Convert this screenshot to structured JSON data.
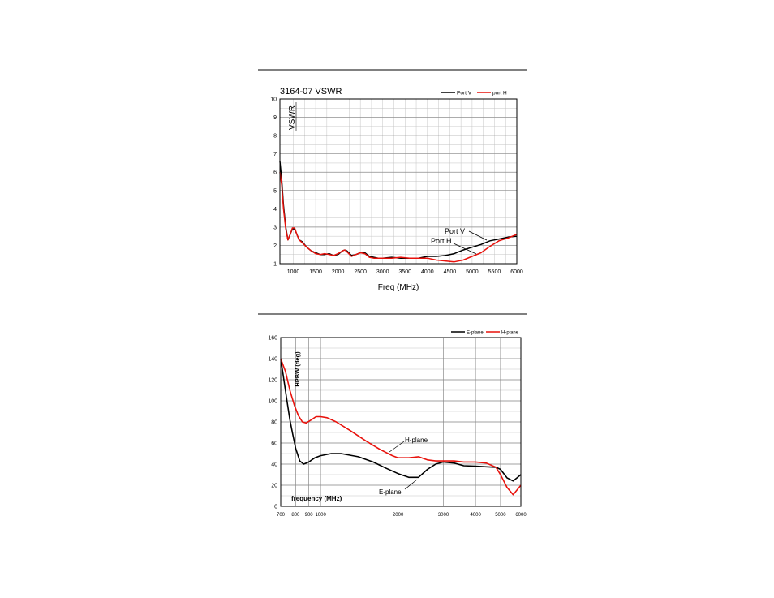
{
  "chart_data": [
    {
      "type": "line",
      "title": "3164-07 VSWR",
      "xlabel": "Freq (MHz)",
      "ylabel": "VSWR",
      "xlim": [
        700,
        6000
      ],
      "ylim": [
        1,
        10
      ],
      "xticks": [
        1000,
        1500,
        2000,
        2500,
        3000,
        3500,
        4000,
        4500,
        5000,
        5500,
        6000
      ],
      "yticks": [
        1,
        2,
        3,
        4,
        5,
        6,
        7,
        8,
        9,
        10
      ],
      "grid": true,
      "legend_position": "top-right",
      "series": [
        {
          "name": "Port V",
          "color": "#000000",
          "x": [
            700,
            740,
            780,
            830,
            880,
            930,
            980,
            1030,
            1080,
            1130,
            1200,
            1300,
            1400,
            1500,
            1600,
            1700,
            1800,
            1900,
            2000,
            2100,
            2150,
            2200,
            2300,
            2400,
            2500,
            2600,
            2700,
            2800,
            2900,
            3000,
            3200,
            3400,
            3600,
            3800,
            4000,
            4200,
            4400,
            4600,
            4800,
            5000,
            5200,
            5400,
            5600,
            5800,
            6000
          ],
          "y": [
            6.6,
            5.6,
            4.2,
            3.0,
            2.3,
            2.6,
            2.9,
            2.9,
            2.6,
            2.3,
            2.2,
            1.9,
            1.7,
            1.6,
            1.5,
            1.5,
            1.55,
            1.45,
            1.5,
            1.7,
            1.75,
            1.7,
            1.45,
            1.5,
            1.6,
            1.6,
            1.4,
            1.35,
            1.3,
            1.3,
            1.35,
            1.3,
            1.3,
            1.3,
            1.4,
            1.4,
            1.45,
            1.55,
            1.75,
            1.9,
            2.05,
            2.25,
            2.35,
            2.45,
            2.5
          ]
        },
        {
          "name": "port H",
          "color": "#e8120c",
          "x": [
            700,
            740,
            780,
            830,
            880,
            930,
            980,
            1030,
            1080,
            1130,
            1200,
            1300,
            1400,
            1500,
            1600,
            1700,
            1800,
            1900,
            2000,
            2100,
            2150,
            2200,
            2300,
            2400,
            2500,
            2600,
            2700,
            2800,
            2900,
            3000,
            3200,
            3400,
            3600,
            3800,
            4000,
            4200,
            4400,
            4600,
            4800,
            5000,
            5200,
            5400,
            5600,
            5800,
            6000
          ],
          "y": [
            6.0,
            5.3,
            4.0,
            2.9,
            2.3,
            2.6,
            2.95,
            2.95,
            2.6,
            2.3,
            2.15,
            1.9,
            1.7,
            1.55,
            1.5,
            1.55,
            1.5,
            1.45,
            1.55,
            1.7,
            1.75,
            1.65,
            1.4,
            1.5,
            1.6,
            1.55,
            1.35,
            1.3,
            1.3,
            1.3,
            1.3,
            1.35,
            1.3,
            1.3,
            1.3,
            1.2,
            1.15,
            1.1,
            1.2,
            1.4,
            1.6,
            1.95,
            2.25,
            2.4,
            2.6
          ]
        }
      ],
      "annotations": [
        {
          "text": "VSWR",
          "vertical": true
        },
        {
          "text": "Port V"
        },
        {
          "text": "Port H"
        }
      ],
      "legend": {
        "labels": [
          "Port V",
          "port H"
        ]
      }
    },
    {
      "type": "line",
      "title": "",
      "xlabel": "frequency (MHz)",
      "ylabel": "HPBW (deg)",
      "x_scale": "log",
      "xlim": [
        700,
        6000
      ],
      "ylim": [
        0,
        160
      ],
      "xticks": [
        700,
        800,
        900,
        1000,
        2000,
        3000,
        4000,
        5000,
        6000
      ],
      "yticks": [
        0,
        20,
        40,
        60,
        80,
        100,
        120,
        140,
        160
      ],
      "grid": true,
      "legend_position": "top-right",
      "series": [
        {
          "name": "E-plane",
          "color": "#000000",
          "x": [
            700,
            720,
            740,
            760,
            780,
            800,
            830,
            860,
            900,
            950,
            1000,
            1100,
            1200,
            1400,
            1600,
            1800,
            2000,
            2200,
            2400,
            2600,
            2800,
            3000,
            3300,
            3600,
            4000,
            4400,
            4800,
            5000,
            5300,
            5600,
            6000
          ],
          "y": [
            140,
            120,
            100,
            82,
            68,
            55,
            43,
            40,
            42,
            46,
            48,
            50,
            50,
            47,
            42,
            36,
            31,
            27.5,
            27.5,
            35,
            40,
            42,
            41,
            38.5,
            38,
            37.5,
            37,
            35,
            27,
            24,
            30
          ]
        },
        {
          "name": "H-plane",
          "color": "#e8120c",
          "x": [
            700,
            730,
            760,
            790,
            820,
            850,
            880,
            920,
            960,
            1000,
            1060,
            1150,
            1300,
            1500,
            1700,
            1900,
            2000,
            2200,
            2400,
            2600,
            2800,
            3000,
            3300,
            3600,
            4000,
            4400,
            4800,
            5000,
            5300,
            5600,
            6000
          ],
          "y": [
            140,
            128,
            110,
            96,
            86,
            80,
            79,
            82,
            85,
            85,
            84,
            80,
            72,
            62,
            54,
            48,
            46,
            46,
            47,
            44,
            43,
            43,
            43,
            42,
            42,
            41,
            37,
            30,
            18,
            11,
            20
          ]
        }
      ],
      "annotations": [
        {
          "text": "H-plane"
        },
        {
          "text": "E-plane"
        }
      ],
      "legend": {
        "labels": [
          "E-plane",
          "H-plane"
        ]
      }
    }
  ]
}
